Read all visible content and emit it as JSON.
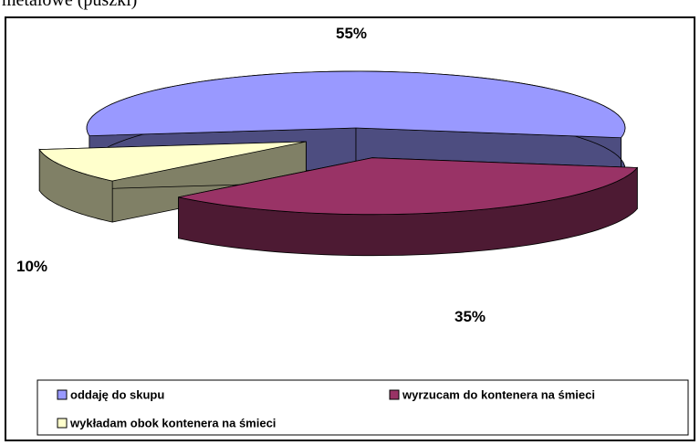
{
  "chart_data": {
    "type": "pie",
    "title": "metalowe (puszki)",
    "categories": [
      "oddaję do skupu",
      "wyrzucam do kontenera na śmieci",
      "wykładam obok kontenera na śmieci"
    ],
    "values": [
      55,
      35,
      10
    ],
    "value_labels": [
      "55%",
      "35%",
      "10%"
    ],
    "colors": [
      "#9999ff",
      "#993366",
      "#ffffcc"
    ],
    "legend": "bottom"
  }
}
